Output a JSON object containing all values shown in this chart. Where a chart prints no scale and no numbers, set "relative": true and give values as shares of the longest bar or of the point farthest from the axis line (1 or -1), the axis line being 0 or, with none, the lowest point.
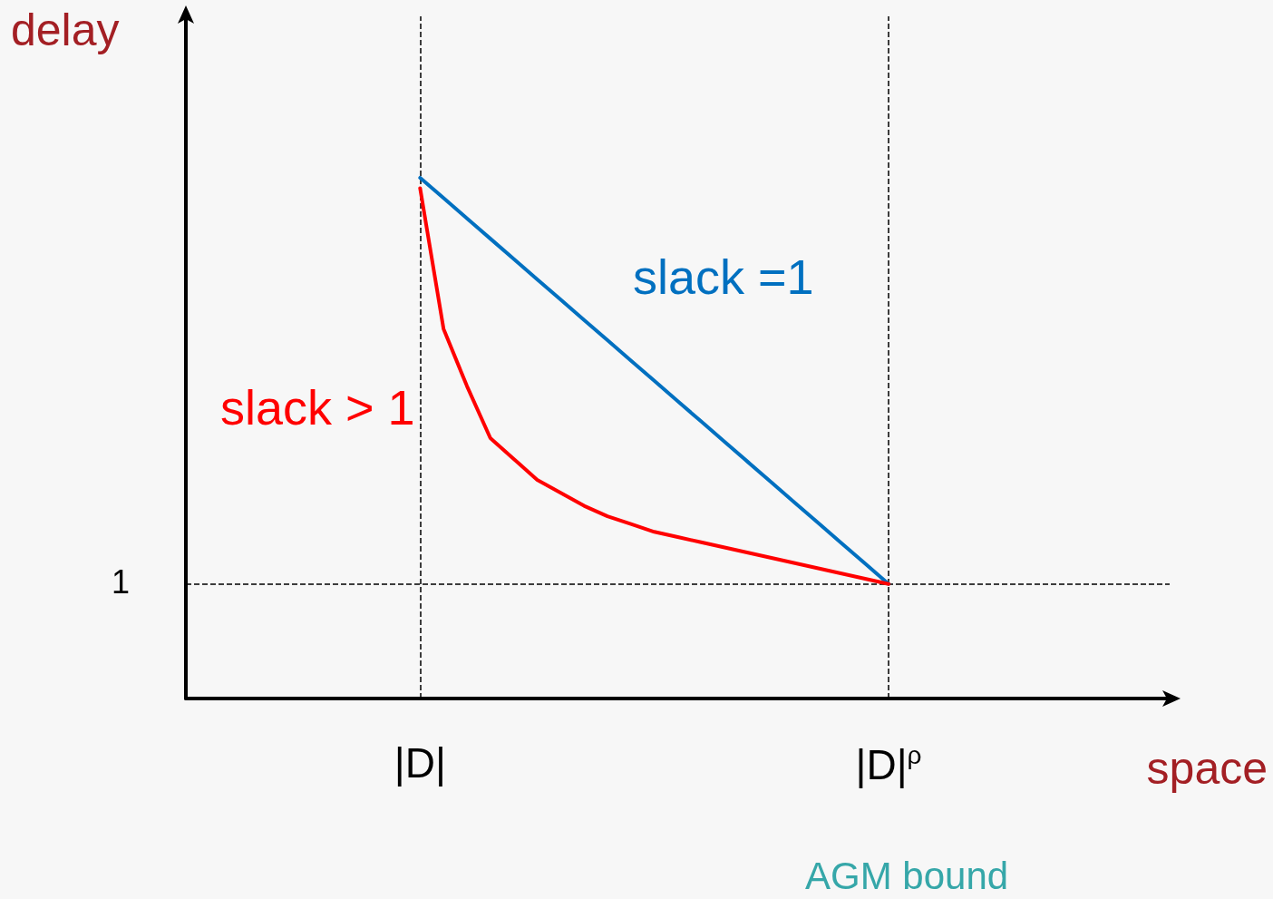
{
  "chart_data": {
    "type": "line",
    "relative": true,
    "xlabel": "space",
    "ylabel": "delay",
    "annotations": [
      "1",
      "AGM bound"
    ],
    "marker": "none",
    "categories": [
      null,
      null,
      null,
      null,
      null,
      null,
      null,
      null,
      null,
      null,
      "|D|",
      null,
      null,
      null,
      null,
      null,
      null,
      null,
      null,
      null,
      null,
      null,
      null,
      null,
      null,
      null,
      null,
      null,
      null,
      null,
      "|D|$^{ρ}$",
      null,
      null,
      null,
      null,
      null,
      null,
      null,
      null,
      null,
      null,
      null,
      null
    ],
    "series": [
      {
        "name": "slack =1",
        "color": "#0070c0",
        "values": [
          null,
          null,
          null,
          null,
          null,
          null,
          null,
          null,
          null,
          null,
          1.0,
          0.961,
          0.922,
          0.883,
          0.844,
          0.805,
          0.766,
          0.727,
          0.688,
          0.649,
          0.61,
          0.571,
          0.532,
          0.493,
          0.454,
          0.415,
          0.376,
          0.337,
          0.298,
          0.259,
          0.22,
          null,
          null,
          null,
          null,
          null,
          null,
          null,
          null,
          null,
          null,
          null,
          null
        ]
      },
      {
        "name": "slack > 1",
        "color": "#ff0000",
        "values": [
          null,
          null,
          null,
          null,
          null,
          null,
          null,
          null,
          null,
          null,
          0.98,
          0.71,
          0.6,
          0.5,
          0.46,
          0.42,
          0.395,
          0.37,
          0.35,
          0.335,
          0.32,
          0.31,
          0.3,
          0.29,
          0.28,
          0.27,
          0.26,
          0.25,
          0.24,
          0.23,
          0.22,
          null,
          null,
          null,
          null,
          null,
          null,
          null,
          null,
          null,
          null,
          null,
          null
        ]
      }
    ],
    "ref_lines": [
      {
        "axis": "x",
        "value": "|D|",
        "line_style": "dashed",
        "color": "#000000"
      },
      {
        "axis": "x",
        "value": "|D|$^{ρ}$",
        "line_style": "dashed",
        "color": "#000000"
      },
      {
        "axis": "y",
        "value": 0.22,
        "line_style": "dashed",
        "color": "#000000"
      }
    ]
  }
}
